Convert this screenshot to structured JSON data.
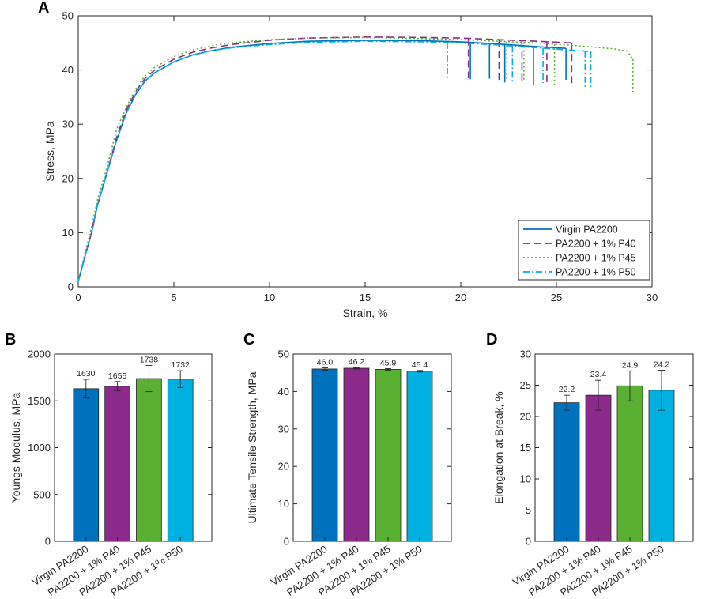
{
  "colors": {
    "virgin": "#0072bd",
    "p40": "#8b2a8a",
    "p45": "#59b033",
    "p50": "#00b0e0"
  },
  "chart_data": [
    {
      "panel": "A",
      "type": "line",
      "xlabel": "Strain, %",
      "ylabel": "Stress, MPa",
      "xlim": [
        0,
        30
      ],
      "ylim": [
        0,
        50
      ],
      "xticks": [
        "0",
        "5",
        "10",
        "15",
        "20",
        "25",
        "30"
      ],
      "yticks": [
        "0",
        "10",
        "20",
        "30",
        "40",
        "50"
      ],
      "legend_position": "bottom-right",
      "series": [
        {
          "name": "Virgin PA2200",
          "style": "solid",
          "color": "#0072bd",
          "x": [
            0,
            0.3,
            0.7,
            1,
            1.5,
            2,
            2.5,
            3,
            3.5,
            4,
            5,
            6,
            7,
            8,
            10,
            12,
            15,
            18,
            20,
            22,
            24,
            25.5
          ],
          "y": [
            1,
            5,
            10,
            15,
            21,
            27,
            32,
            35.5,
            38,
            39.5,
            41.5,
            42.8,
            43.6,
            44.2,
            44.9,
            45.3,
            45.5,
            45.4,
            45.2,
            44.8,
            44.3,
            44
          ],
          "breaks": [
            20.5,
            21.5,
            22.3,
            23.8,
            25.5
          ],
          "break_stress": [
            38.3,
            38.4,
            37.7,
            37.2,
            38.2
          ]
        },
        {
          "name": "PA2200 + 1% P40",
          "style": "dashed",
          "color": "#8b2a8a",
          "x": [
            0,
            0.3,
            0.7,
            1,
            1.5,
            2,
            2.5,
            3,
            3.5,
            4,
            5,
            6,
            7,
            8,
            10,
            12,
            15,
            18,
            20,
            22,
            24,
            25.8
          ],
          "y": [
            1,
            5,
            10,
            15,
            21,
            27.5,
            32.5,
            36,
            38.5,
            40,
            42,
            43.3,
            44.1,
            44.7,
            45.5,
            45.9,
            46.1,
            46,
            45.9,
            45.6,
            45.3,
            45
          ],
          "breaks": [
            20.4,
            22,
            23.2,
            24.5,
            25.8
          ],
          "break_stress": [
            38.5,
            37.9,
            37.5,
            37.2,
            36.9
          ]
        },
        {
          "name": "PA2200 + 1% P45",
          "style": "dotted",
          "color": "#59b033",
          "x": [
            0,
            0.3,
            0.7,
            1,
            1.5,
            2,
            2.5,
            3,
            3.5,
            4,
            5,
            6,
            7,
            8,
            10,
            12,
            15,
            18,
            20,
            22,
            24,
            26,
            28,
            28.7,
            29
          ],
          "y": [
            1,
            5.5,
            11,
            16,
            22,
            29,
            33,
            36.5,
            39,
            40.5,
            42.5,
            43.7,
            44.5,
            45,
            45.6,
            45.9,
            46,
            45.8,
            45.6,
            45.3,
            45,
            44.5,
            43.9,
            43.5,
            42
          ],
          "breaks": [
            22.4,
            23.3,
            24.9,
            29
          ],
          "break_stress": [
            38.3,
            37.9,
            37.3,
            36
          ]
        },
        {
          "name": "PA2200 + 1% P50",
          "style": "dashdot",
          "color": "#00b0e0",
          "x": [
            0,
            0.3,
            0.7,
            1,
            1.5,
            2,
            2.5,
            3,
            3.5,
            4,
            5,
            6,
            7,
            8,
            10,
            12,
            15,
            18,
            20,
            22,
            24,
            26,
            26.8
          ],
          "y": [
            1,
            5,
            10,
            15,
            21,
            27,
            32,
            35.5,
            38,
            39.5,
            41.5,
            42.8,
            43.6,
            44.1,
            44.7,
            45.1,
            45.3,
            45.2,
            45,
            44.6,
            44.1,
            43.6,
            43.4
          ],
          "breaks": [
            19.3,
            22.7,
            24.3,
            26.5,
            26.8
          ],
          "break_stress": [
            38.5,
            37.8,
            37.6,
            36.7,
            36.7
          ]
        }
      ]
    },
    {
      "panel": "B",
      "type": "bar",
      "ylabel": "Youngs Modulus, MPa",
      "ylim": [
        0,
        2000
      ],
      "yticks": [
        "0",
        "500",
        "1000",
        "1500",
        "2000"
      ],
      "categories": [
        "Virgin PA2200",
        "PA2200 + 1% P40",
        "PA2200 + 1% P45",
        "PA2200 + 1% P50"
      ],
      "values": [
        1630,
        1656,
        1738,
        1732
      ],
      "errors": [
        100,
        50,
        140,
        90
      ],
      "labels": [
        "1630",
        "1656",
        "1738",
        "1732"
      ]
    },
    {
      "panel": "C",
      "type": "bar",
      "ylabel": "Ultimate Tensile Strength, MPa",
      "ylim": [
        0,
        50
      ],
      "yticks": [
        "0",
        "10",
        "20",
        "30",
        "40",
        "50"
      ],
      "categories": [
        "Virgin PA2200",
        "PA2200 + 1% P40",
        "PA2200 + 1% P45",
        "PA2200 + 1% P50"
      ],
      "values": [
        46.0,
        46.2,
        45.9,
        45.4
      ],
      "errors": [
        0.3,
        0.2,
        0.2,
        0.2
      ],
      "labels": [
        "46.0",
        "46.2",
        "45.9",
        "45.4"
      ]
    },
    {
      "panel": "D",
      "type": "bar",
      "ylabel": "Elongation at Break, %",
      "ylim": [
        0,
        30
      ],
      "yticks": [
        "0",
        "5",
        "10",
        "15",
        "20",
        "25",
        "30"
      ],
      "categories": [
        "Virgin PA2200",
        "PA2200 + 1% P40",
        "PA2200 + 1% P45",
        "PA2200 + 1% P50"
      ],
      "values": [
        22.2,
        23.4,
        24.9,
        24.2
      ],
      "errors": [
        1.2,
        2.4,
        2.4,
        3.2
      ],
      "labels": [
        "22.2",
        "23.4",
        "24.9",
        "24.2"
      ]
    }
  ]
}
